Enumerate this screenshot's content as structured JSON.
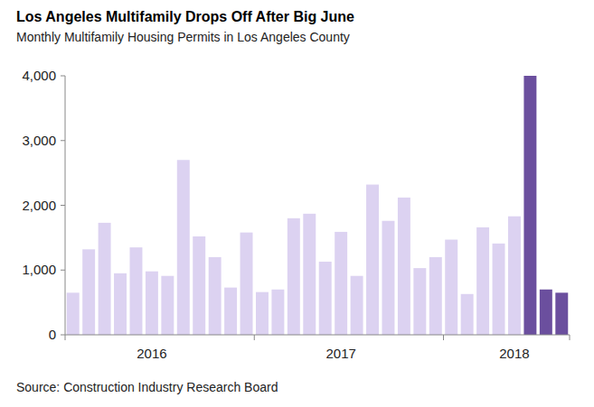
{
  "chart_data": {
    "type": "bar",
    "title": "Los Angeles Multifamily Drops Off After Big June",
    "subtitle": "Monthly Multifamily Housing Permits in Los Angeles County",
    "source": "Source: Construction Industry Research Board",
    "categories": [
      null,
      null,
      null,
      null,
      null,
      "2016",
      null,
      null,
      null,
      null,
      null,
      null,
      null,
      null,
      null,
      null,
      null,
      "2017",
      null,
      null,
      null,
      null,
      null,
      null,
      null,
      null,
      null,
      null,
      "2018",
      null,
      null,
      null
    ],
    "values": [
      650,
      1320,
      1730,
      950,
      1350,
      980,
      910,
      2700,
      1520,
      1200,
      730,
      1580,
      660,
      700,
      1800,
      1870,
      1130,
      1590,
      910,
      2320,
      1760,
      2120,
      1030,
      1200,
      1470,
      630,
      1660,
      1410,
      1830,
      4000,
      700,
      650
    ],
    "colors": [
      "#dcd2f1",
      "#dcd2f1",
      "#dcd2f1",
      "#dcd2f1",
      "#dcd2f1",
      "#dcd2f1",
      "#dcd2f1",
      "#dcd2f1",
      "#dcd2f1",
      "#dcd2f1",
      "#dcd2f1",
      "#dcd2f1",
      "#dcd2f1",
      "#dcd2f1",
      "#dcd2f1",
      "#dcd2f1",
      "#dcd2f1",
      "#dcd2f1",
      "#dcd2f1",
      "#dcd2f1",
      "#dcd2f1",
      "#dcd2f1",
      "#dcd2f1",
      "#dcd2f1",
      "#dcd2f1",
      "#dcd2f1",
      "#dcd2f1",
      "#dcd2f1",
      "#dcd2f1",
      "#6b4f9e",
      "#6b4f9e",
      "#6b4f9e"
    ],
    "ylim": [
      0,
      4000
    ],
    "yticks": [
      0,
      {
        "value": 1000,
        "label": "1,000"
      },
      {
        "value": 2000,
        "label": "2,000"
      },
      {
        "value": 3000,
        "label": "3,000"
      },
      {
        "value": 4000,
        "label": "4,000"
      }
    ],
    "grid": false
  }
}
